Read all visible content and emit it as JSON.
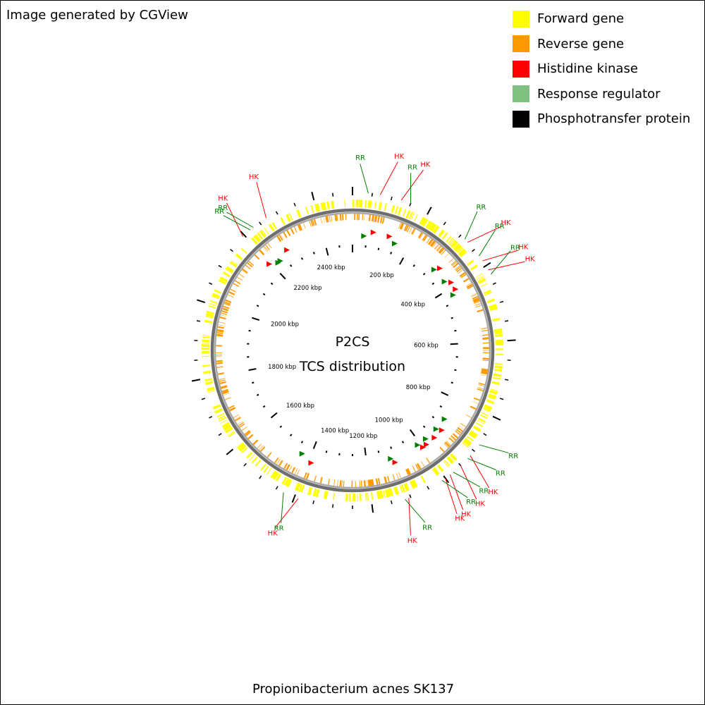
{
  "credit": "Image generated by CGView",
  "legend": [
    {
      "label": "Forward gene",
      "color": "#ffff00"
    },
    {
      "label": "Reverse gene",
      "color": "#ff9900"
    },
    {
      "label": "Histidine kinase",
      "color": "#ff0000"
    },
    {
      "label": "Response regulator",
      "color": "#7fbf7f"
    },
    {
      "label": "Phosphotransfer protein",
      "color": "#000000"
    }
  ],
  "map": {
    "title_line1": "P2CS",
    "title_line2": "TCS distribution",
    "genome_name": "Propionibacterium acnes SK137",
    "genome_length_kbp": 2500,
    "kbp_ticks": [
      {
        "label": "200 kbp",
        "kbp": 200
      },
      {
        "label": "400 kbp",
        "kbp": 400
      },
      {
        "label": "600 kbp",
        "kbp": 600
      },
      {
        "label": "800 kbp",
        "kbp": 800
      },
      {
        "label": "1000 kbp",
        "kbp": 1000
      },
      {
        "label": "1200 kbp",
        "kbp": 1200
      },
      {
        "label": "1400 kbp",
        "kbp": 1400
      },
      {
        "label": "1600 kbp",
        "kbp": 1600
      },
      {
        "label": "1800 kbp",
        "kbp": 1800
      },
      {
        "label": "2000 kbp",
        "kbp": 2000
      },
      {
        "label": "2200 kbp",
        "kbp": 2200
      },
      {
        "label": "2400 kbp",
        "kbp": 2400
      }
    ],
    "tcs_features": [
      {
        "type": "RR",
        "kbp": 40
      },
      {
        "type": "HK",
        "kbp": 70
      },
      {
        "type": "HK",
        "kbp": 125
      },
      {
        "type": "RR",
        "kbp": 150
      },
      {
        "type": "RR",
        "kbp": 315
      },
      {
        "type": "HK",
        "kbp": 325
      },
      {
        "type": "RR",
        "kbp": 370
      },
      {
        "type": "HK",
        "kbp": 385
      },
      {
        "type": "HK",
        "kbp": 412
      },
      {
        "type": "RR",
        "kbp": 425
      },
      {
        "type": "RR",
        "kbp": 880
      },
      {
        "type": "HK",
        "kbp": 915
      },
      {
        "type": "RR",
        "kbp": 925
      },
      {
        "type": "HK",
        "kbp": 950
      },
      {
        "type": "RR",
        "kbp": 975
      },
      {
        "type": "HK",
        "kbp": 985
      },
      {
        "type": "HK",
        "kbp": 1000
      },
      {
        "type": "RR",
        "kbp": 1010
      },
      {
        "type": "HK",
        "kbp": 1105
      },
      {
        "type": "RR",
        "kbp": 1115
      },
      {
        "type": "HK",
        "kbp": 1390
      },
      {
        "type": "RR",
        "kbp": 1430
      },
      {
        "type": "HK",
        "kbp": 2195
      },
      {
        "type": "RR",
        "kbp": 2220
      },
      {
        "type": "RR",
        "kbp": 2230
      },
      {
        "type": "HK",
        "kbp": 2270
      }
    ]
  }
}
